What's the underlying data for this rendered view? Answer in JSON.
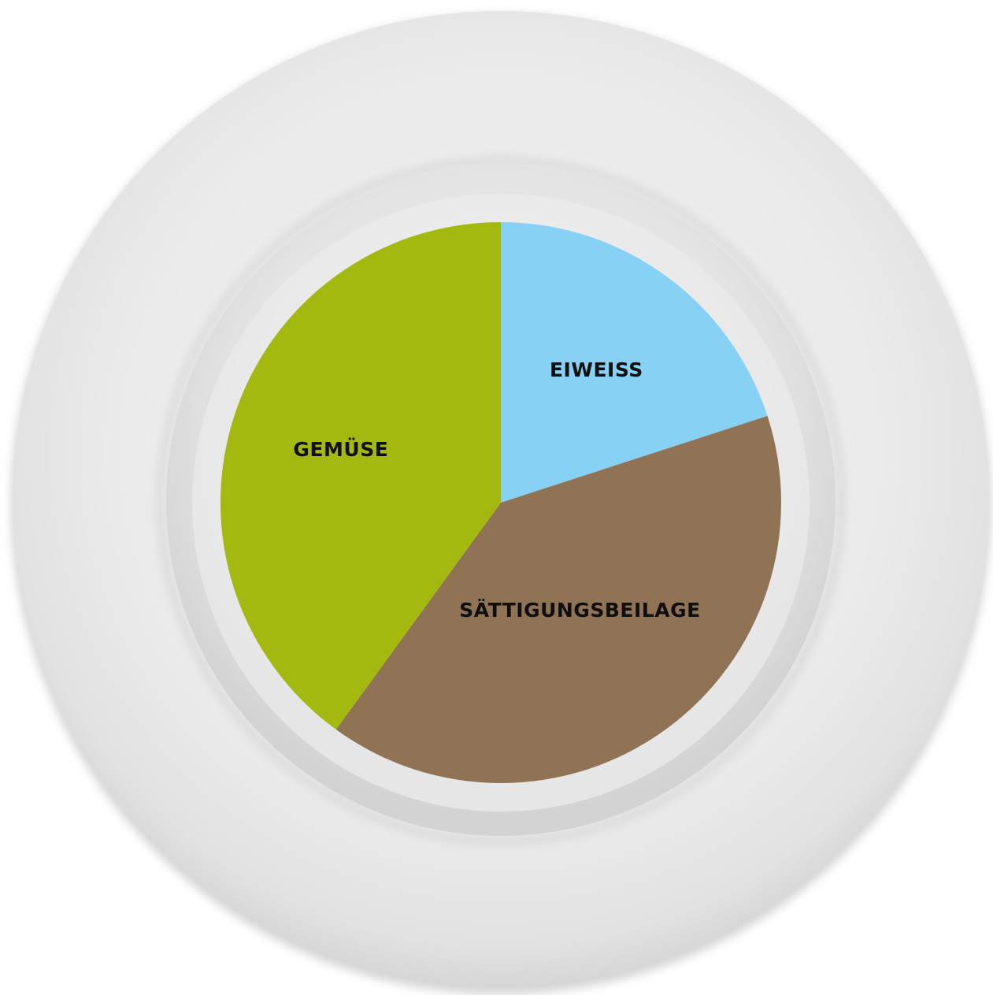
{
  "chart_data": {
    "type": "pie",
    "title": "",
    "start_angle_deg": 0,
    "direction": "clockwise",
    "slices": [
      {
        "label": "EIWEISS",
        "value": 20,
        "color": "#87d1f5"
      },
      {
        "label": "SÄTTIGUNGSBEILAGE",
        "value": 40,
        "color": "#8f7354"
      },
      {
        "label": "GEMÜSE",
        "value": 40,
        "color": "#a4b90f"
      }
    ]
  },
  "plate": {
    "rim_color": "#e9e9e9",
    "well_color": "#dedede",
    "inner_color": "#ececec"
  }
}
